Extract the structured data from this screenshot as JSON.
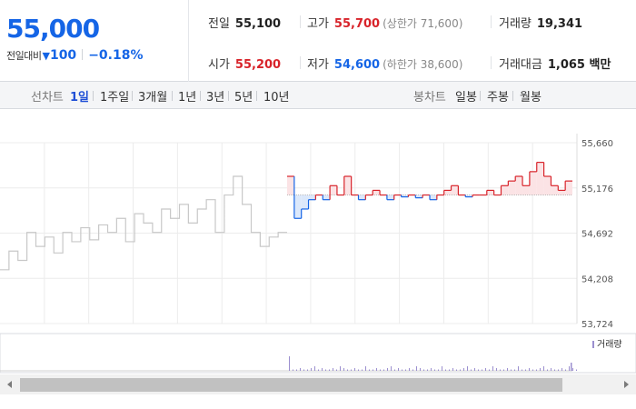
{
  "summary": {
    "current_price": "55,000",
    "change_label": "전일대비",
    "change_direction_icon": "down-triangle-icon",
    "change_value": "100",
    "change_rate": "−0.18%"
  },
  "stats": {
    "prev_close_label": "전일",
    "prev_close": "55,100",
    "high_label": "고가",
    "high": "55,700",
    "upper_limit": "(상한가 71,600)",
    "volume_label": "거래량",
    "volume": "19,341",
    "open_label": "시가",
    "open": "55,200",
    "low_label": "저가",
    "low": "54,600",
    "lower_limit": "(하한가 38,600)",
    "amount_label": "거래대금",
    "amount": "1,065 백만"
  },
  "toolbar": {
    "line_chart_label": "선차트",
    "periods": [
      "1일",
      "1주일",
      "3개월",
      "1년",
      "3년",
      "5년",
      "10년"
    ],
    "active_period": "1일",
    "candle_chart_label": "봉차트",
    "candle_periods": [
      "일봉",
      "주봉",
      "월봉"
    ]
  },
  "colors": {
    "up": "#d8232a",
    "down": "#1565e6",
    "neutral_line": "#c8c8c8",
    "up_fill": "#fbe3e5",
    "down_fill": "#dbe8fb",
    "volume_bar": "#9b8fcf"
  },
  "chart_data": {
    "type": "line",
    "title": "",
    "y_ticks": [
      "55,660",
      "55,176",
      "54,692",
      "54,208",
      "53,724"
    ],
    "ylim": [
      53724,
      55660
    ],
    "baseline": 55100,
    "grid": true,
    "volume_legend": "거래량",
    "previous_session_series": [
      54300,
      54500,
      54400,
      54700,
      54550,
      54650,
      54480,
      54700,
      54600,
      54750,
      54620,
      54780,
      54700,
      54850,
      54600,
      54900,
      54800,
      54700,
      54950,
      54850,
      55000,
      54800,
      54950,
      55050,
      54700,
      55100,
      55300,
      55000,
      54700,
      54550,
      54650,
      54700
    ],
    "today_series": [
      55300,
      54850,
      54950,
      55050,
      55100,
      55050,
      55200,
      55100,
      55300,
      55100,
      55050,
      55100,
      55150,
      55100,
      55050,
      55100,
      55080,
      55100,
      55070,
      55100,
      55050,
      55100,
      55150,
      55200,
      55100,
      55080,
      55100,
      55100,
      55150,
      55100,
      55200,
      55250,
      55300,
      55200,
      55350,
      55450,
      55300,
      55200,
      55150,
      55250
    ]
  }
}
